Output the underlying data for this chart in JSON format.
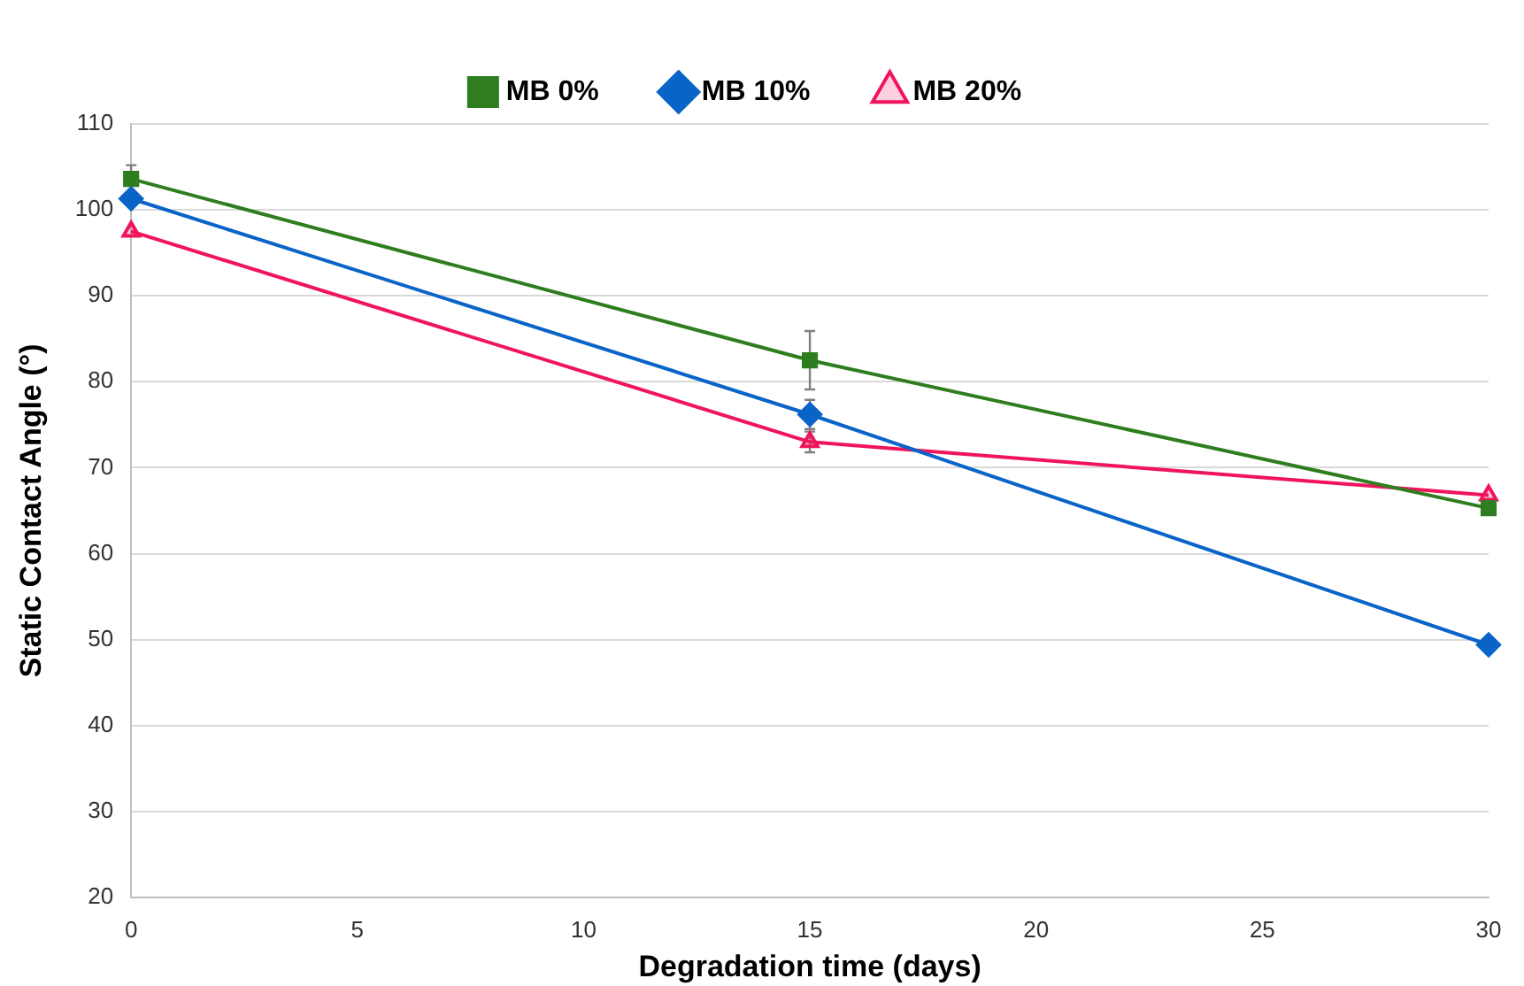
{
  "chart_data": {
    "type": "line",
    "xlabel": "Degradation time (days)",
    "ylabel": "Static Contact Angle (°)",
    "x": [
      0,
      15,
      30
    ],
    "xlim": [
      0,
      30
    ],
    "xticks": [
      0,
      5,
      10,
      15,
      20,
      25,
      30
    ],
    "ylim": [
      20,
      110
    ],
    "yticks": [
      20,
      30,
      40,
      50,
      60,
      70,
      80,
      90,
      100,
      110
    ],
    "grid": "y",
    "legend": "top",
    "series": [
      {
        "name": "MB 0%",
        "color": "#2e7d1f",
        "marker": "square",
        "values": [
          103.6,
          82.5,
          65.3
        ],
        "errors": [
          1.6,
          3.4,
          null
        ]
      },
      {
        "name": "MB 10%",
        "color": "#0a64c8",
        "marker": "diamond",
        "values": [
          101.3,
          76.2,
          49.4
        ],
        "errors": [
          null,
          1.7,
          null
        ]
      },
      {
        "name": "MB 20%",
        "color": "#f0145a",
        "marker": "triangle",
        "values": [
          97.5,
          73.0,
          66.8
        ],
        "errors": [
          null,
          1.2,
          null
        ]
      }
    ]
  }
}
